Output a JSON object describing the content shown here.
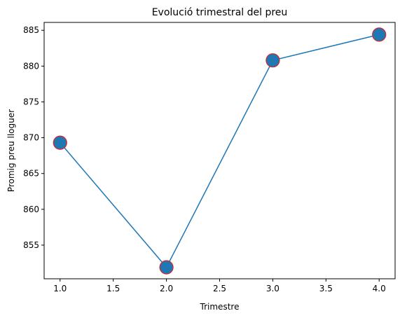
{
  "chart_data": {
    "type": "line",
    "title": "Evolució trimestral del preu",
    "xlabel": "Trimestre",
    "ylabel": "Promig preu lloguer",
    "x": [
      1.0,
      2.0,
      3.0,
      4.0
    ],
    "series": [
      {
        "values": [
          869.3,
          851.9,
          880.8,
          884.4
        ]
      }
    ],
    "xlim": [
      0.85,
      4.15
    ],
    "ylim": [
      850.3,
      886.1
    ],
    "xticks": [
      1.0,
      1.5,
      2.0,
      2.5,
      3.0,
      3.5,
      4.0
    ],
    "xtick_labels": [
      "1.0",
      "1.5",
      "2.0",
      "2.5",
      "3.0",
      "3.5",
      "4.0"
    ],
    "yticks": [
      855,
      860,
      865,
      870,
      875,
      880,
      885
    ],
    "ytick_labels": [
      "855",
      "860",
      "865",
      "870",
      "875",
      "880",
      "885"
    ],
    "grid": false,
    "line_color": "#1f77b4",
    "marker_face_color": "#1f77b4",
    "marker_edge_color": "#d62728"
  }
}
